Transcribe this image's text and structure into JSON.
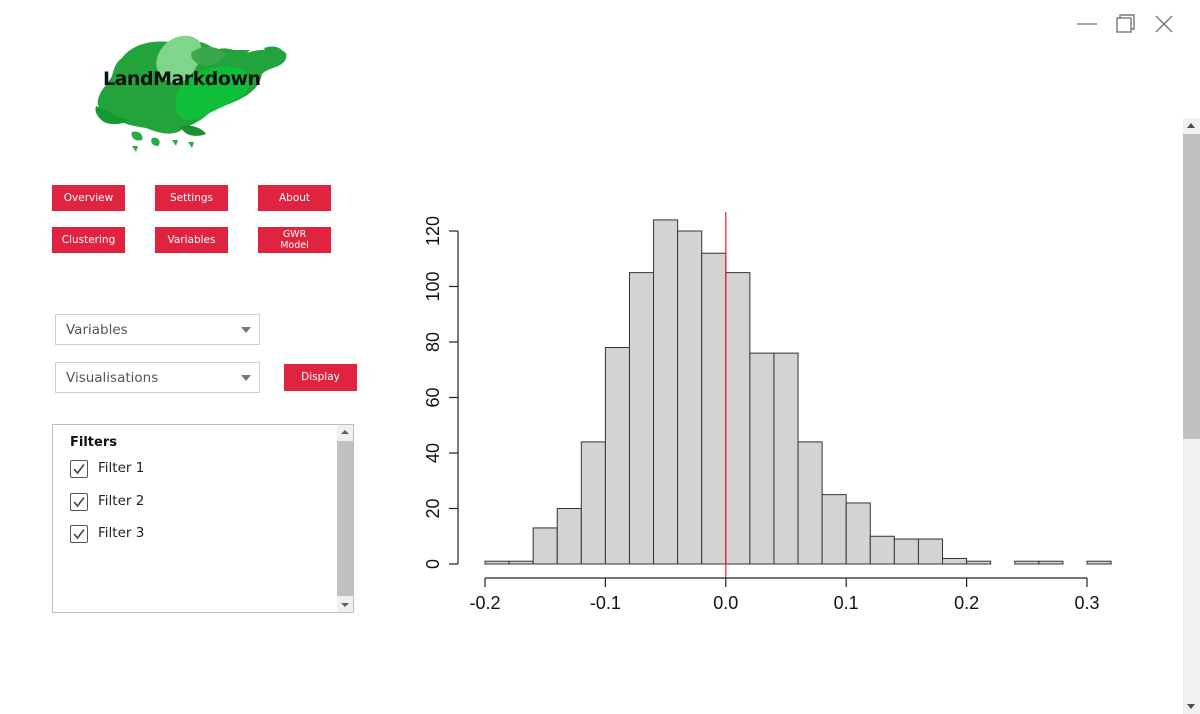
{
  "app": {
    "logo_text": "LandMarkdown"
  },
  "window_controls": {
    "minimize_icon": "minimize-icon",
    "maximize_icon": "maximize-icon",
    "close_icon": "close-icon"
  },
  "nav": {
    "overview": "Overview",
    "settings": "Settings",
    "about": "About",
    "clustering": "Clustering",
    "variables": "Variables",
    "gwr_model": "GWR\nModel"
  },
  "controls": {
    "variables_select": "Variables",
    "visualisations_select": "Visualisations",
    "display_button": "Display"
  },
  "filters": {
    "title": "Filters",
    "items": [
      {
        "label": "Filter 1",
        "checked": true
      },
      {
        "label": "Filter 2",
        "checked": true
      },
      {
        "label": "Filter 3",
        "checked": true
      }
    ]
  },
  "colors": {
    "accent": "#e0243f",
    "bar_fill": "#d3d3d3",
    "bar_stroke": "#333333",
    "reference_line": "#e8202a"
  },
  "chart_data": {
    "type": "bar",
    "subtype": "histogram",
    "bin_width": 0.02,
    "bin_start": -0.2,
    "bin_edges": [
      -0.2,
      -0.18,
      -0.16,
      -0.14,
      -0.12,
      -0.1,
      -0.08,
      -0.06,
      -0.04,
      -0.02,
      0.0,
      0.02,
      0.04,
      0.06,
      0.08,
      0.1,
      0.12,
      0.14,
      0.16,
      0.18,
      0.2,
      0.22,
      0.24,
      0.26,
      0.28,
      0.3,
      0.32
    ],
    "values": [
      1,
      1,
      13,
      20,
      44,
      78,
      105,
      124,
      120,
      112,
      105,
      76,
      76,
      44,
      25,
      22,
      10,
      9,
      9,
      2,
      1,
      0,
      1,
      1,
      0,
      1
    ],
    "xlim": [
      -0.2,
      0.32
    ],
    "ylim": [
      0,
      128
    ],
    "x_ticks": [
      -0.2,
      -0.1,
      0.0,
      0.1,
      0.2,
      0.3
    ],
    "x_tick_labels": [
      "-0.2",
      "-0.1",
      "0.0",
      "0.1",
      "0.2",
      "0.3"
    ],
    "y_ticks": [
      0,
      20,
      40,
      60,
      80,
      100,
      120
    ],
    "y_tick_labels": [
      "0",
      "20",
      "40",
      "60",
      "80",
      "100",
      "120"
    ],
    "reference_line_x": 0.0,
    "title": "",
    "xlabel": "",
    "ylabel": ""
  }
}
